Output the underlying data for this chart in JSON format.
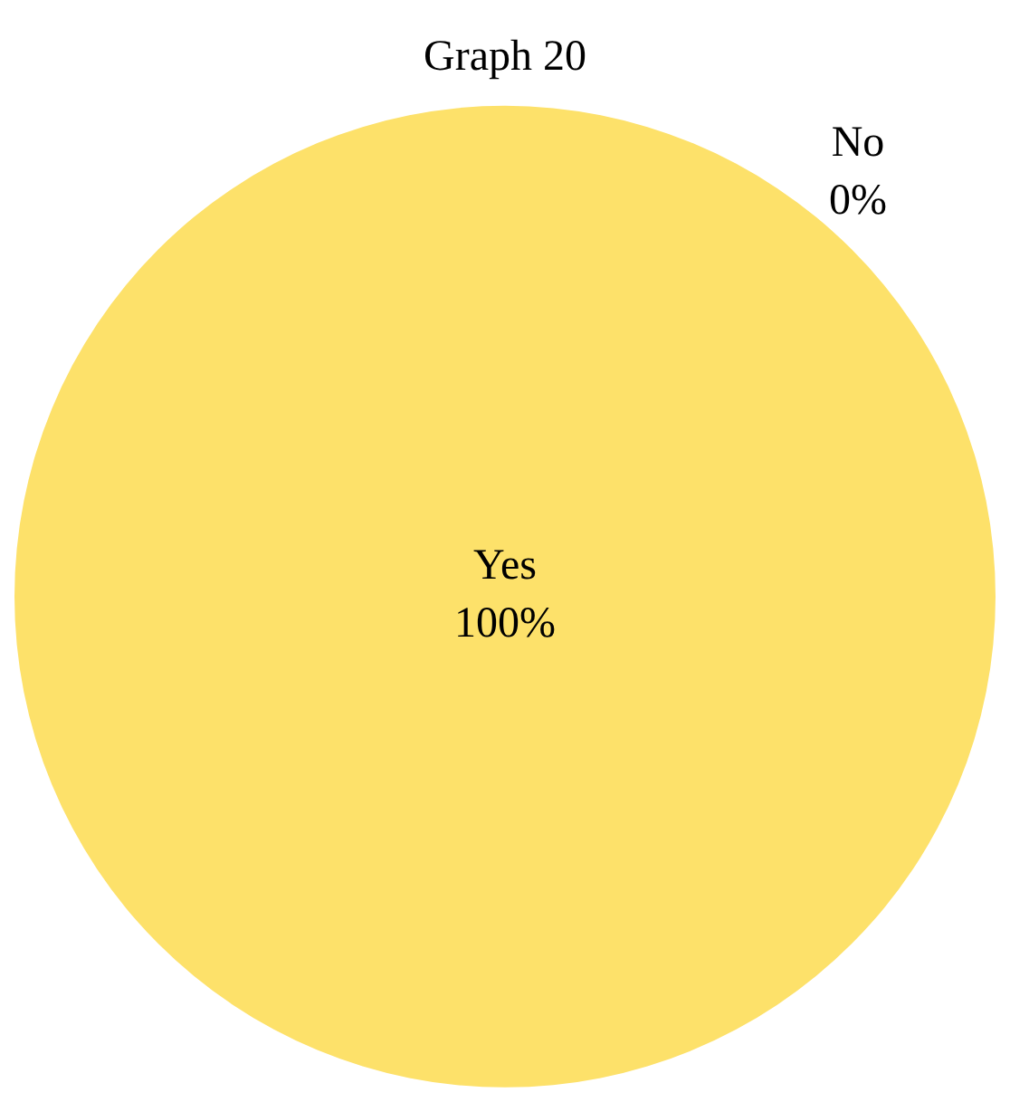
{
  "chart_data": {
    "type": "pie",
    "title": "Graph 20",
    "categories": [
      "Yes",
      "No"
    ],
    "values": [
      100,
      0
    ],
    "colors": [
      "#fde16a",
      "#4f81bd"
    ],
    "value_labels": [
      "100%",
      "0%"
    ],
    "legend": false
  }
}
